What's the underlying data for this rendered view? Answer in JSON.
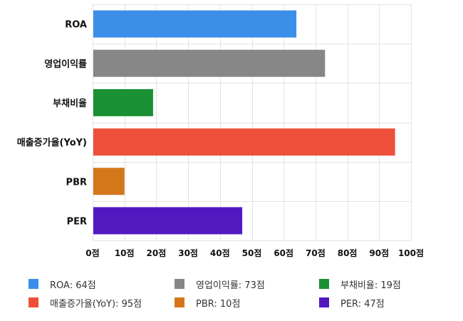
{
  "chart_data": {
    "type": "bar",
    "orientation": "horizontal",
    "title": "",
    "xlabel": "",
    "ylabel": "",
    "unit": "점",
    "categories": [
      "ROA",
      "영업이익률",
      "부채비율",
      "매출증가율(YoY)",
      "PBR",
      "PER"
    ],
    "values": [
      64,
      73,
      19,
      95,
      10,
      47
    ],
    "colors": [
      "#3b8fe8",
      "#878787",
      "#1a9134",
      "#ee4f3a",
      "#d4761a",
      "#5319c0"
    ],
    "xlim": [
      0,
      100
    ],
    "xticks": [
      0,
      10,
      20,
      30,
      40,
      50,
      60,
      70,
      80,
      90,
      100
    ],
    "xtick_labels": [
      "0점",
      "10점",
      "20점",
      "30점",
      "40점",
      "50점",
      "60점",
      "70점",
      "80점",
      "90점",
      "100점"
    ],
    "grid": true,
    "legend_position": "bottom",
    "legend": [
      "ROA: 64점",
      "영업이익률: 73점",
      "부채비율: 19점",
      "매출증가율(YoY): 95점",
      "PBR: 10점",
      "PER: 47점"
    ]
  }
}
